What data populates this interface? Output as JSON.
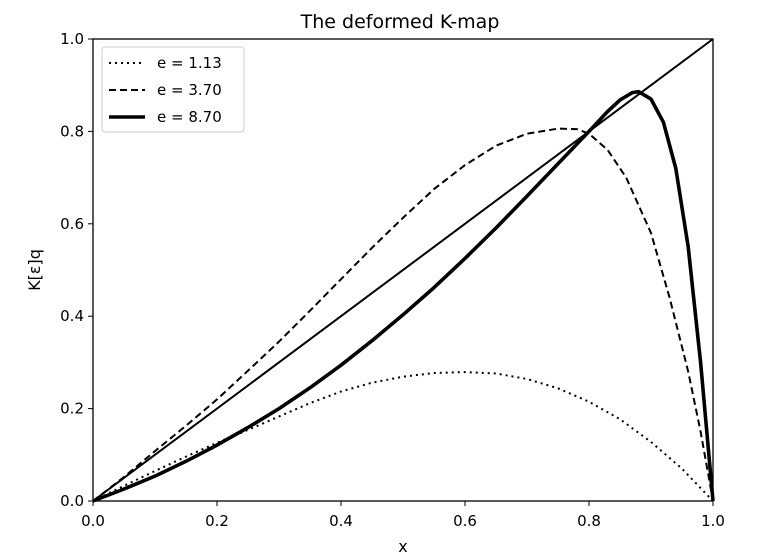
{
  "chart_data": {
    "type": "line",
    "title": "The deformed K-map",
    "xlabel": "x",
    "ylabel": "K[ε]q",
    "xlim": [
      0.0,
      1.0
    ],
    "ylim": [
      0.0,
      1.0
    ],
    "xticks": [
      "0.0",
      "0.2",
      "0.4",
      "0.6",
      "0.8",
      "1.0"
    ],
    "yticks": [
      "0.0",
      "0.2",
      "0.4",
      "0.6",
      "0.8",
      "1.0"
    ],
    "grid": false,
    "legend_position": "top-left",
    "series": [
      {
        "name": "e = 1.13",
        "style": "dotted",
        "x": [
          0.0,
          0.05,
          0.1,
          0.15,
          0.2,
          0.25,
          0.3,
          0.35,
          0.4,
          0.45,
          0.5,
          0.55,
          0.6,
          0.65,
          0.7,
          0.75,
          0.8,
          0.85,
          0.9,
          0.95,
          1.0
        ],
        "y": [
          0.0,
          0.033,
          0.065,
          0.096,
          0.126,
          0.154,
          0.183,
          0.212,
          0.237,
          0.256,
          0.269,
          0.277,
          0.279,
          0.276,
          0.264,
          0.244,
          0.215,
          0.177,
          0.128,
          0.07,
          0.0
        ]
      },
      {
        "name": "e = 3.70",
        "style": "dashed",
        "x": [
          0.0,
          0.05,
          0.1,
          0.15,
          0.2,
          0.25,
          0.3,
          0.35,
          0.4,
          0.45,
          0.5,
          0.55,
          0.6,
          0.65,
          0.7,
          0.75,
          0.78,
          0.8,
          0.83,
          0.86,
          0.9,
          0.93,
          0.96,
          0.98,
          1.0
        ],
        "y": [
          0.0,
          0.052,
          0.108,
          0.163,
          0.22,
          0.282,
          0.345,
          0.412,
          0.48,
          0.548,
          0.613,
          0.675,
          0.727,
          0.769,
          0.795,
          0.806,
          0.805,
          0.795,
          0.76,
          0.7,
          0.58,
          0.44,
          0.28,
          0.15,
          0.0
        ]
      },
      {
        "name": "e = 8.70",
        "style": "solid-thick",
        "x": [
          0.0,
          0.05,
          0.1,
          0.15,
          0.2,
          0.25,
          0.3,
          0.35,
          0.4,
          0.45,
          0.5,
          0.55,
          0.6,
          0.65,
          0.7,
          0.75,
          0.8,
          0.83,
          0.85,
          0.87,
          0.88,
          0.9,
          0.92,
          0.94,
          0.96,
          0.98,
          0.99,
          1.0
        ],
        "y": [
          0.0,
          0.026,
          0.054,
          0.086,
          0.121,
          0.159,
          0.2,
          0.245,
          0.294,
          0.347,
          0.403,
          0.462,
          0.525,
          0.591,
          0.66,
          0.73,
          0.8,
          0.843,
          0.868,
          0.884,
          0.886,
          0.87,
          0.82,
          0.72,
          0.55,
          0.3,
          0.15,
          0.0
        ]
      },
      {
        "name": "",
        "style": "solid-thin",
        "x": [
          0.0,
          1.0
        ],
        "y": [
          0.0,
          1.0
        ]
      }
    ]
  }
}
